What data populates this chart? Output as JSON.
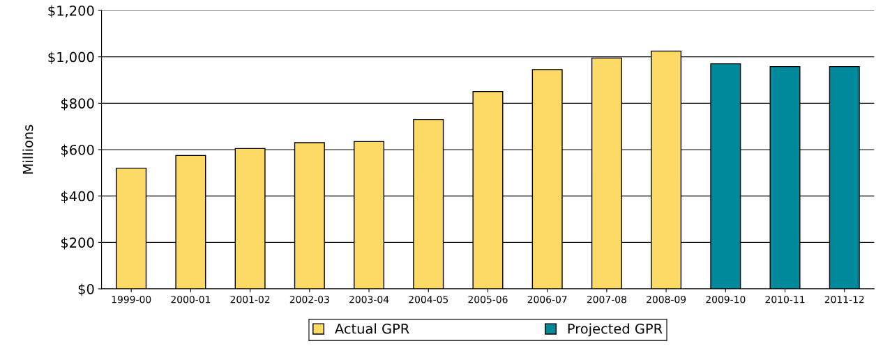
{
  "chart_data": {
    "type": "bar",
    "ylabel": "Millions",
    "categories": [
      "1999-00",
      "2000-01",
      "2001-02",
      "2002-03",
      "2003-04",
      "2004-05",
      "2005-06",
      "2006-07",
      "2007-08",
      "2008-09",
      "2009-10",
      "2010-11",
      "2011-12"
    ],
    "series": [
      {
        "name": "Actual GPR",
        "color": "#fdd966",
        "values": [
          520,
          575,
          605,
          630,
          635,
          730,
          850,
          945,
          995,
          1025,
          null,
          null,
          null
        ]
      },
      {
        "name": "Projected GPR",
        "color": "#00899a",
        "values": [
          null,
          null,
          null,
          null,
          null,
          null,
          null,
          null,
          null,
          null,
          970,
          958,
          958
        ]
      }
    ],
    "ylim": [
      0,
      1200
    ],
    "yticks": [
      {
        "value": 0,
        "label": "$0"
      },
      {
        "value": 200,
        "label": "$200"
      },
      {
        "value": 400,
        "label": "$400"
      },
      {
        "value": 600,
        "label": "$600"
      },
      {
        "value": 800,
        "label": "$800"
      },
      {
        "value": 1000,
        "label": "$1,000"
      },
      {
        "value": 1200,
        "label": "$1,200"
      }
    ],
    "grid": "y",
    "legend": "bottom"
  }
}
